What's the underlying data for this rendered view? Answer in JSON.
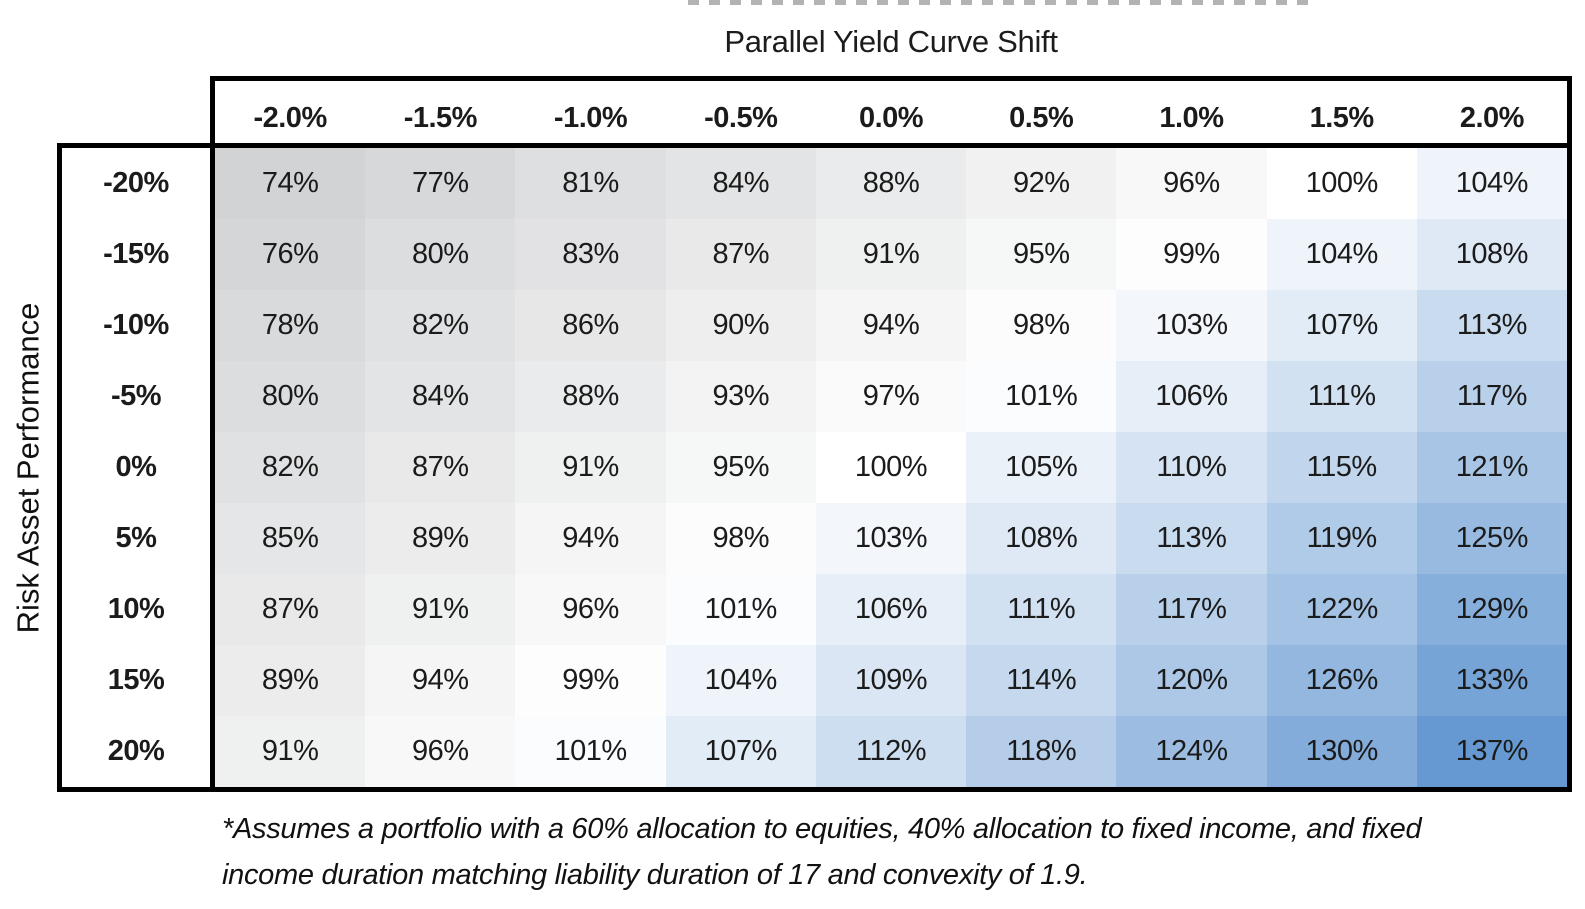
{
  "chart_data": {
    "type": "heatmap",
    "title": "Parallel Yield Curve Shift",
    "xlabel": "Parallel Yield Curve Shift",
    "ylabel": "Risk Asset Performance",
    "columns": [
      "-2.0%",
      "-1.5%",
      "-1.0%",
      "-0.5%",
      "0.0%",
      "0.5%",
      "1.0%",
      "1.5%",
      "2.0%"
    ],
    "rows": [
      "-20%",
      "-15%",
      "-10%",
      "-5%",
      "0%",
      "5%",
      "10%",
      "15%",
      "20%"
    ],
    "values": [
      [
        74,
        77,
        81,
        84,
        88,
        92,
        96,
        100,
        104
      ],
      [
        76,
        80,
        83,
        87,
        91,
        95,
        99,
        104,
        108
      ],
      [
        78,
        82,
        86,
        90,
        94,
        98,
        103,
        107,
        113
      ],
      [
        80,
        84,
        88,
        93,
        97,
        101,
        106,
        111,
        117
      ],
      [
        82,
        87,
        91,
        95,
        100,
        105,
        110,
        115,
        121
      ],
      [
        85,
        89,
        94,
        98,
        103,
        108,
        113,
        119,
        125
      ],
      [
        87,
        91,
        96,
        101,
        106,
        111,
        117,
        122,
        129
      ],
      [
        89,
        94,
        99,
        104,
        109,
        114,
        120,
        126,
        133
      ],
      [
        91,
        96,
        101,
        107,
        112,
        118,
        124,
        130,
        137
      ]
    ],
    "value_suffix": "%",
    "color_scale": {
      "min_value": 74,
      "mid_value": 100,
      "max_value": 137,
      "min_color": "#d2d3d5",
      "mid_color": "#ffffff",
      "max_color": "#6699d1"
    },
    "grid": false,
    "legend": "none"
  },
  "footnote": {
    "lines": [
      "*Assumes a portfolio with a 60% allocation to equities, 40% allocation to fixed income, and fixed",
      "income duration matching liability duration of 17 and convexity of 1.9."
    ]
  }
}
